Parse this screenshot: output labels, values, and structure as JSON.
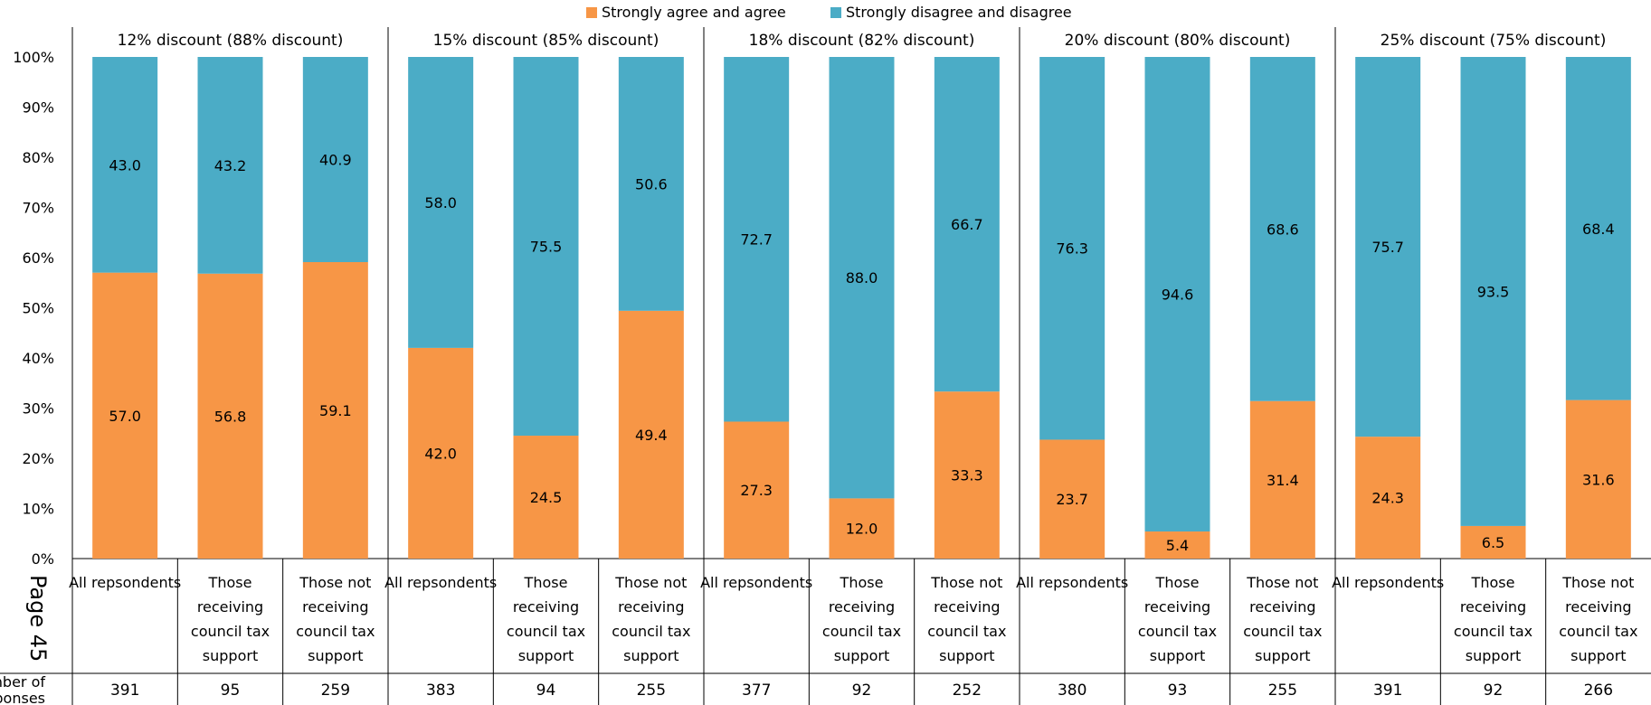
{
  "chart_data": {
    "type": "bar",
    "stacked": true,
    "percent_stacked": true,
    "legend": {
      "position": "top",
      "entries": [
        {
          "name": "Strongly agree and agree",
          "color": "#F79646"
        },
        {
          "name": "Strongly disagree and disagree",
          "color": "#4BACC6"
        }
      ]
    },
    "y_ticks": [
      "0%",
      "10%",
      "20%",
      "30%",
      "40%",
      "50%",
      "60%",
      "70%",
      "80%",
      "90%",
      "100%"
    ],
    "ylim": [
      0,
      100
    ],
    "grid": false,
    "groups": [
      {
        "title": "12% discount (88% discount)",
        "bars": [
          {
            "label": "All repsondents",
            "agree": 57.0,
            "disagree": 43.0,
            "agree_label": "57.0",
            "disagree_label": "43.0",
            "responses": "391"
          },
          {
            "label": "Those receiving council tax support",
            "agree": 56.8,
            "disagree": 43.2,
            "agree_label": "56.8",
            "disagree_label": "43.2",
            "responses": "95"
          },
          {
            "label": "Those not receiving council tax support",
            "agree": 59.1,
            "disagree": 40.9,
            "agree_label": "59.1",
            "disagree_label": "40.9",
            "responses": "259"
          }
        ]
      },
      {
        "title": "15% discount (85% discount)",
        "bars": [
          {
            "label": "All repsondents",
            "agree": 42.0,
            "disagree": 58.0,
            "agree_label": "42.0",
            "disagree_label": "58.0",
            "responses": "383"
          },
          {
            "label": "Those receiving council tax support",
            "agree": 24.5,
            "disagree": 75.5,
            "agree_label": "24.5",
            "disagree_label": "75.5",
            "responses": "94"
          },
          {
            "label": "Those not receiving council tax support",
            "agree": 49.4,
            "disagree": 50.6,
            "agree_label": "49.4",
            "disagree_label": "50.6",
            "responses": "255"
          }
        ]
      },
      {
        "title": "18% discount (82% discount)",
        "bars": [
          {
            "label": "All repsondents",
            "agree": 27.3,
            "disagree": 72.7,
            "agree_label": "27.3",
            "disagree_label": "72.7",
            "responses": "377"
          },
          {
            "label": "Those receiving council tax support",
            "agree": 12.0,
            "disagree": 88.0,
            "agree_label": "12.0",
            "disagree_label": "88.0",
            "responses": "92"
          },
          {
            "label": "Those not receiving council tax support",
            "agree": 33.3,
            "disagree": 66.7,
            "agree_label": "33.3",
            "disagree_label": "66.7",
            "responses": "252"
          }
        ]
      },
      {
        "title": "20% discount (80% discount)",
        "bars": [
          {
            "label": "All repsondents",
            "agree": 23.7,
            "disagree": 76.3,
            "agree_label": "23.7",
            "disagree_label": "76.3",
            "responses": "380"
          },
          {
            "label": "Those receiving council tax support",
            "agree": 5.4,
            "disagree": 94.6,
            "agree_label": "5.4",
            "disagree_label": "94.6",
            "responses": "93"
          },
          {
            "label": "Those not receiving council tax support",
            "agree": 31.4,
            "disagree": 68.6,
            "agree_label": "31.4",
            "disagree_label": "68.6",
            "responses": "255"
          }
        ]
      },
      {
        "title": "25% discount (75% discount)",
        "bars": [
          {
            "label": "All repsondents",
            "agree": 24.3,
            "disagree": 75.7,
            "agree_label": "24.3",
            "disagree_label": "75.7",
            "responses": "391"
          },
          {
            "label": "Those receiving council tax support",
            "agree": 6.5,
            "disagree": 93.5,
            "agree_label": "6.5",
            "disagree_label": "93.5",
            "responses": "92"
          },
          {
            "label": "Those not receiving council tax support",
            "agree": 31.6,
            "disagree": 68.4,
            "agree_label": "31.6",
            "disagree_label": "68.4",
            "responses": "266"
          }
        ]
      }
    ],
    "row_label": "Number of responses"
  },
  "page_stamp": "Page 45"
}
